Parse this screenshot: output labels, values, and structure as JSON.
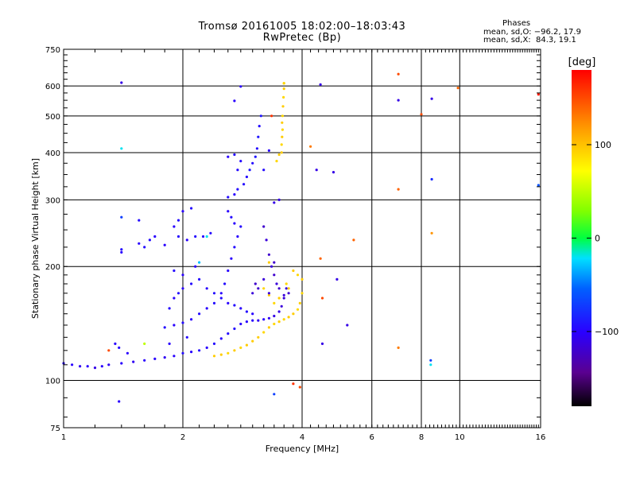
{
  "title_line1": "Tromsø 20161005 18:02:00–18:03:43",
  "title_line2": "RwPretec (Bp)",
  "stats": {
    "heading": "Phases",
    "o_mode": "mean, sd,O: −96.2, 17.9",
    "x_mode": "mean, sd,X:  84.3, 19.1"
  },
  "colorbar": {
    "unit_label": "[deg]",
    "ticks": [
      {
        "value": 100,
        "label": "100"
      },
      {
        "value": 0,
        "label": "0"
      },
      {
        "value": -100,
        "label": "−100"
      }
    ],
    "range": [
      -180,
      180
    ]
  },
  "chart_data": {
    "type": "scatter",
    "xlabel": "Frequency [MHz]",
    "ylabel": "Stationary phase Virtual Height [km]",
    "xscale": "log",
    "yscale": "log",
    "xlim": [
      1,
      16
    ],
    "ylim": [
      75,
      750
    ],
    "xticks": [
      1,
      2,
      4,
      6,
      8,
      10,
      16
    ],
    "xtick_labels": [
      "1",
      "2",
      "4",
      "6",
      "8",
      "10",
      "16"
    ],
    "yticks": [
      75,
      100,
      200,
      300,
      400,
      500,
      600,
      750
    ],
    "ytick_labels": [
      "75",
      "100",
      "200",
      "300",
      "400",
      "500",
      "600",
      "750"
    ],
    "grid": true,
    "color_variable": "phase [deg]",
    "points": [
      [
        1.0,
        111,
        -100
      ],
      [
        1.05,
        110,
        -100
      ],
      [
        1.1,
        109,
        -105
      ],
      [
        1.15,
        109,
        -100
      ],
      [
        1.2,
        108,
        -110
      ],
      [
        1.25,
        109,
        -100
      ],
      [
        1.3,
        110,
        -105
      ],
      [
        1.4,
        111,
        -100
      ],
      [
        1.5,
        112,
        -105
      ],
      [
        1.6,
        113,
        -100
      ],
      [
        1.7,
        114,
        -100
      ],
      [
        1.8,
        115,
        -105
      ],
      [
        1.9,
        116,
        -100
      ],
      [
        2.0,
        118,
        -95
      ],
      [
        2.1,
        119,
        -100
      ],
      [
        2.2,
        120,
        -95
      ],
      [
        2.3,
        122,
        -100
      ],
      [
        2.4,
        125,
        -95
      ],
      [
        2.5,
        129,
        -100
      ],
      [
        2.6,
        133,
        -95
      ],
      [
        2.7,
        137,
        -95
      ],
      [
        2.8,
        141,
        -100
      ],
      [
        2.9,
        143,
        -100
      ],
      [
        3.0,
        144,
        -100
      ],
      [
        3.1,
        144,
        -105
      ],
      [
        3.2,
        145,
        -100
      ],
      [
        3.3,
        146,
        -105
      ],
      [
        3.4,
        148,
        -110
      ],
      [
        3.5,
        152,
        -110
      ],
      [
        3.55,
        157,
        -115
      ],
      [
        3.6,
        165,
        -115
      ],
      [
        3.65,
        175,
        -110
      ],
      [
        2.4,
        116,
        95
      ],
      [
        2.5,
        117,
        95
      ],
      [
        2.6,
        118,
        90
      ],
      [
        2.7,
        120,
        95
      ],
      [
        2.8,
        122,
        90
      ],
      [
        2.9,
        124,
        95
      ],
      [
        3.0,
        127,
        95
      ],
      [
        3.1,
        130,
        95
      ],
      [
        3.2,
        134,
        90
      ],
      [
        3.3,
        138,
        95
      ],
      [
        3.4,
        141,
        90
      ],
      [
        3.5,
        143,
        95
      ],
      [
        3.6,
        145,
        90
      ],
      [
        3.7,
        147,
        95
      ],
      [
        3.8,
        150,
        95
      ],
      [
        3.9,
        154,
        90
      ],
      [
        3.95,
        160,
        95
      ],
      [
        4.0,
        170,
        90
      ],
      [
        4.0,
        185,
        95
      ],
      [
        3.9,
        190,
        90
      ],
      [
        3.8,
        195,
        95
      ],
      [
        3.7,
        175,
        95
      ],
      [
        3.65,
        180,
        90
      ],
      [
        3.5,
        165,
        95
      ],
      [
        3.4,
        160,
        90
      ],
      [
        3.3,
        168,
        95
      ],
      [
        3.2,
        175,
        90
      ],
      [
        3.3,
        205,
        95
      ],
      [
        3.55,
        400,
        95
      ],
      [
        3.55,
        420,
        90
      ],
      [
        3.56,
        440,
        95
      ],
      [
        3.57,
        460,
        90
      ],
      [
        3.56,
        480,
        95
      ],
      [
        3.57,
        500,
        90
      ],
      [
        3.58,
        530,
        95
      ],
      [
        3.59,
        560,
        90
      ],
      [
        3.6,
        590,
        95
      ],
      [
        3.6,
        610,
        90
      ],
      [
        3.45,
        380,
        90
      ],
      [
        3.5,
        395,
        95
      ],
      [
        2.85,
        330,
        -95
      ],
      [
        2.9,
        345,
        -95
      ],
      [
        2.95,
        360,
        -90
      ],
      [
        3.0,
        375,
        -95
      ],
      [
        3.05,
        390,
        -90
      ],
      [
        3.08,
        410,
        -95
      ],
      [
        3.1,
        440,
        -90
      ],
      [
        3.12,
        470,
        -95
      ],
      [
        3.15,
        500,
        -90
      ],
      [
        2.7,
        310,
        -100
      ],
      [
        2.75,
        320,
        -95
      ],
      [
        2.6,
        305,
        -95
      ],
      [
        2.75,
        360,
        -95
      ],
      [
        2.8,
        380,
        -95
      ],
      [
        2.6,
        390,
        -100
      ],
      [
        2.7,
        395,
        -95
      ],
      [
        3.2,
        360,
        -95
      ],
      [
        2.6,
        280,
        -100
      ],
      [
        2.65,
        270,
        -95
      ],
      [
        2.7,
        260,
        -100
      ],
      [
        2.8,
        255,
        -95
      ],
      [
        2.75,
        240,
        -100
      ],
      [
        2.7,
        225,
        -95
      ],
      [
        2.65,
        210,
        -100
      ],
      [
        2.6,
        195,
        -100
      ],
      [
        2.55,
        180,
        -95
      ],
      [
        2.5,
        170,
        -100
      ],
      [
        2.4,
        160,
        -95
      ],
      [
        2.3,
        155,
        -100
      ],
      [
        2.2,
        150,
        -95
      ],
      [
        2.1,
        145,
        -100
      ],
      [
        2.0,
        142,
        -95
      ],
      [
        1.9,
        140,
        -100
      ],
      [
        1.8,
        138,
        -95
      ],
      [
        1.9,
        165,
        -100
      ],
      [
        1.95,
        170,
        -95
      ],
      [
        2.0,
        175,
        -100
      ],
      [
        2.1,
        180,
        -95
      ],
      [
        2.0,
        190,
        -100
      ],
      [
        1.9,
        195,
        -95
      ],
      [
        2.15,
        200,
        -100
      ],
      [
        2.2,
        185,
        -95
      ],
      [
        2.3,
        175,
        -100
      ],
      [
        2.4,
        170,
        -95
      ],
      [
        2.5,
        165,
        -95
      ],
      [
        2.6,
        160,
        -100
      ],
      [
        2.7,
        158,
        -95
      ],
      [
        2.8,
        155,
        -100
      ],
      [
        2.9,
        152,
        -95
      ],
      [
        3.0,
        150,
        -100
      ],
      [
        2.15,
        240,
        -95
      ],
      [
        2.25,
        240,
        -100
      ],
      [
        2.35,
        245,
        -95
      ],
      [
        2.05,
        235,
        -100
      ],
      [
        1.95,
        240,
        -95
      ],
      [
        1.9,
        255,
        -100
      ],
      [
        1.95,
        265,
        -95
      ],
      [
        2.0,
        280,
        -100
      ],
      [
        2.1,
        285,
        -95
      ],
      [
        1.7,
        240,
        -100
      ],
      [
        1.65,
        235,
        -95
      ],
      [
        1.8,
        228,
        -100
      ],
      [
        1.55,
        265,
        -95
      ],
      [
        1.4,
        218,
        -100
      ],
      [
        1.4,
        222,
        -95
      ],
      [
        1.55,
        230,
        -100
      ],
      [
        1.6,
        225,
        -95
      ],
      [
        1.35,
        125,
        -100
      ],
      [
        1.38,
        122,
        -95
      ],
      [
        1.45,
        118,
        -100
      ],
      [
        1.85,
        155,
        -95
      ],
      [
        1.85,
        125,
        -100
      ],
      [
        2.05,
        130,
        -95
      ],
      [
        3.2,
        255,
        -120
      ],
      [
        3.25,
        235,
        -115
      ],
      [
        3.3,
        215,
        -120
      ],
      [
        3.35,
        200,
        -115
      ],
      [
        3.4,
        190,
        -120
      ],
      [
        3.45,
        180,
        -115
      ],
      [
        3.4,
        205,
        -120
      ],
      [
        3.2,
        185,
        -115
      ],
      [
        3.1,
        175,
        -120
      ],
      [
        3.0,
        170,
        -115
      ],
      [
        3.05,
        180,
        -120
      ],
      [
        3.3,
        170,
        -115
      ],
      [
        3.5,
        175,
        -120
      ],
      [
        3.6,
        168,
        -115
      ],
      [
        3.7,
        170,
        -120
      ],
      [
        1.4,
        612,
        -110
      ],
      [
        1.4,
        410,
        -20
      ],
      [
        1.4,
        270,
        -70
      ],
      [
        1.38,
        88,
        -100
      ],
      [
        4.45,
        605,
        -110
      ],
      [
        4.35,
        360,
        -110
      ],
      [
        4.8,
        355,
        -110
      ],
      [
        4.9,
        185,
        -110
      ],
      [
        5.2,
        140,
        -110
      ],
      [
        4.5,
        125,
        -110
      ],
      [
        4.2,
        415,
        130
      ],
      [
        4.45,
        210,
        140
      ],
      [
        4.5,
        165,
        150
      ],
      [
        5.4,
        235,
        140
      ],
      [
        7.0,
        645,
        150
      ],
      [
        7.0,
        320,
        140
      ],
      [
        7.0,
        122,
        130
      ],
      [
        7.0,
        550,
        -110
      ],
      [
        8.5,
        555,
        -110
      ],
      [
        8.5,
        340,
        -80
      ],
      [
        8.5,
        245,
        120
      ],
      [
        8.45,
        113,
        -70
      ],
      [
        8.45,
        110,
        -20
      ],
      [
        8.0,
        505,
        150
      ],
      [
        9.9,
        593,
        140
      ],
      [
        15.8,
        570,
        170
      ],
      [
        15.8,
        328,
        -60
      ],
      [
        3.6,
        610,
        90
      ],
      [
        3.4,
        92,
        -70
      ],
      [
        3.8,
        98,
        160
      ],
      [
        3.95,
        96,
        150
      ],
      [
        2.8,
        598,
        -100
      ],
      [
        2.7,
        548,
        -100
      ],
      [
        3.35,
        500,
        160
      ],
      [
        3.3,
        405,
        -100
      ],
      [
        3.5,
        300,
        -110
      ],
      [
        3.4,
        295,
        -110
      ],
      [
        2.3,
        240,
        -20
      ],
      [
        2.2,
        205,
        -30
      ],
      [
        1.3,
        120,
        150
      ],
      [
        1.6,
        125,
        50
      ]
    ]
  }
}
